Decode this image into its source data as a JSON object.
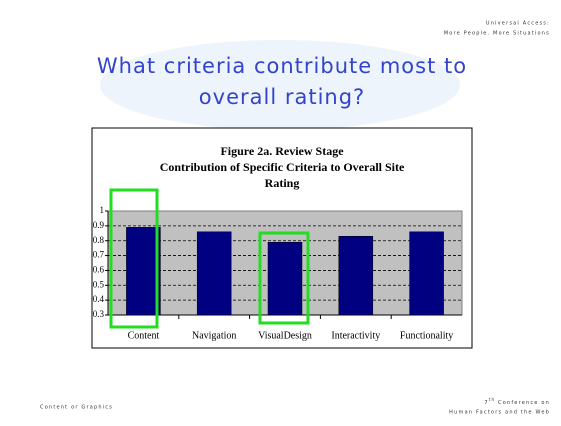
{
  "header": {
    "lines": [
      "Universal Access:",
      "More People. More Situations"
    ]
  },
  "slide_title": {
    "lines": [
      "What criteria contribute most to",
      "overall rating?"
    ]
  },
  "footer": {
    "left": "Content or Graphics",
    "right": {
      "number": "7",
      "suffix": "th",
      "line1": " Conference on",
      "line2": "Human Factors and the Web"
    }
  },
  "chart_data": {
    "type": "bar",
    "title": [
      "Figure 2a. Review Stage",
      "Contribution of Specific Criteria to Overall Site",
      "Rating"
    ],
    "categories": [
      "Content",
      "Navigation",
      "VisualDesign",
      "Interactivity",
      "Functionality"
    ],
    "values": [
      0.89,
      0.86,
      0.79,
      0.83,
      0.86
    ],
    "color": "#000080",
    "ylim": [
      0.3,
      1
    ],
    "yticks": [
      0.3,
      0.4,
      0.5,
      0.6,
      0.7,
      0.8,
      0.9,
      1
    ],
    "grid": true
  }
}
